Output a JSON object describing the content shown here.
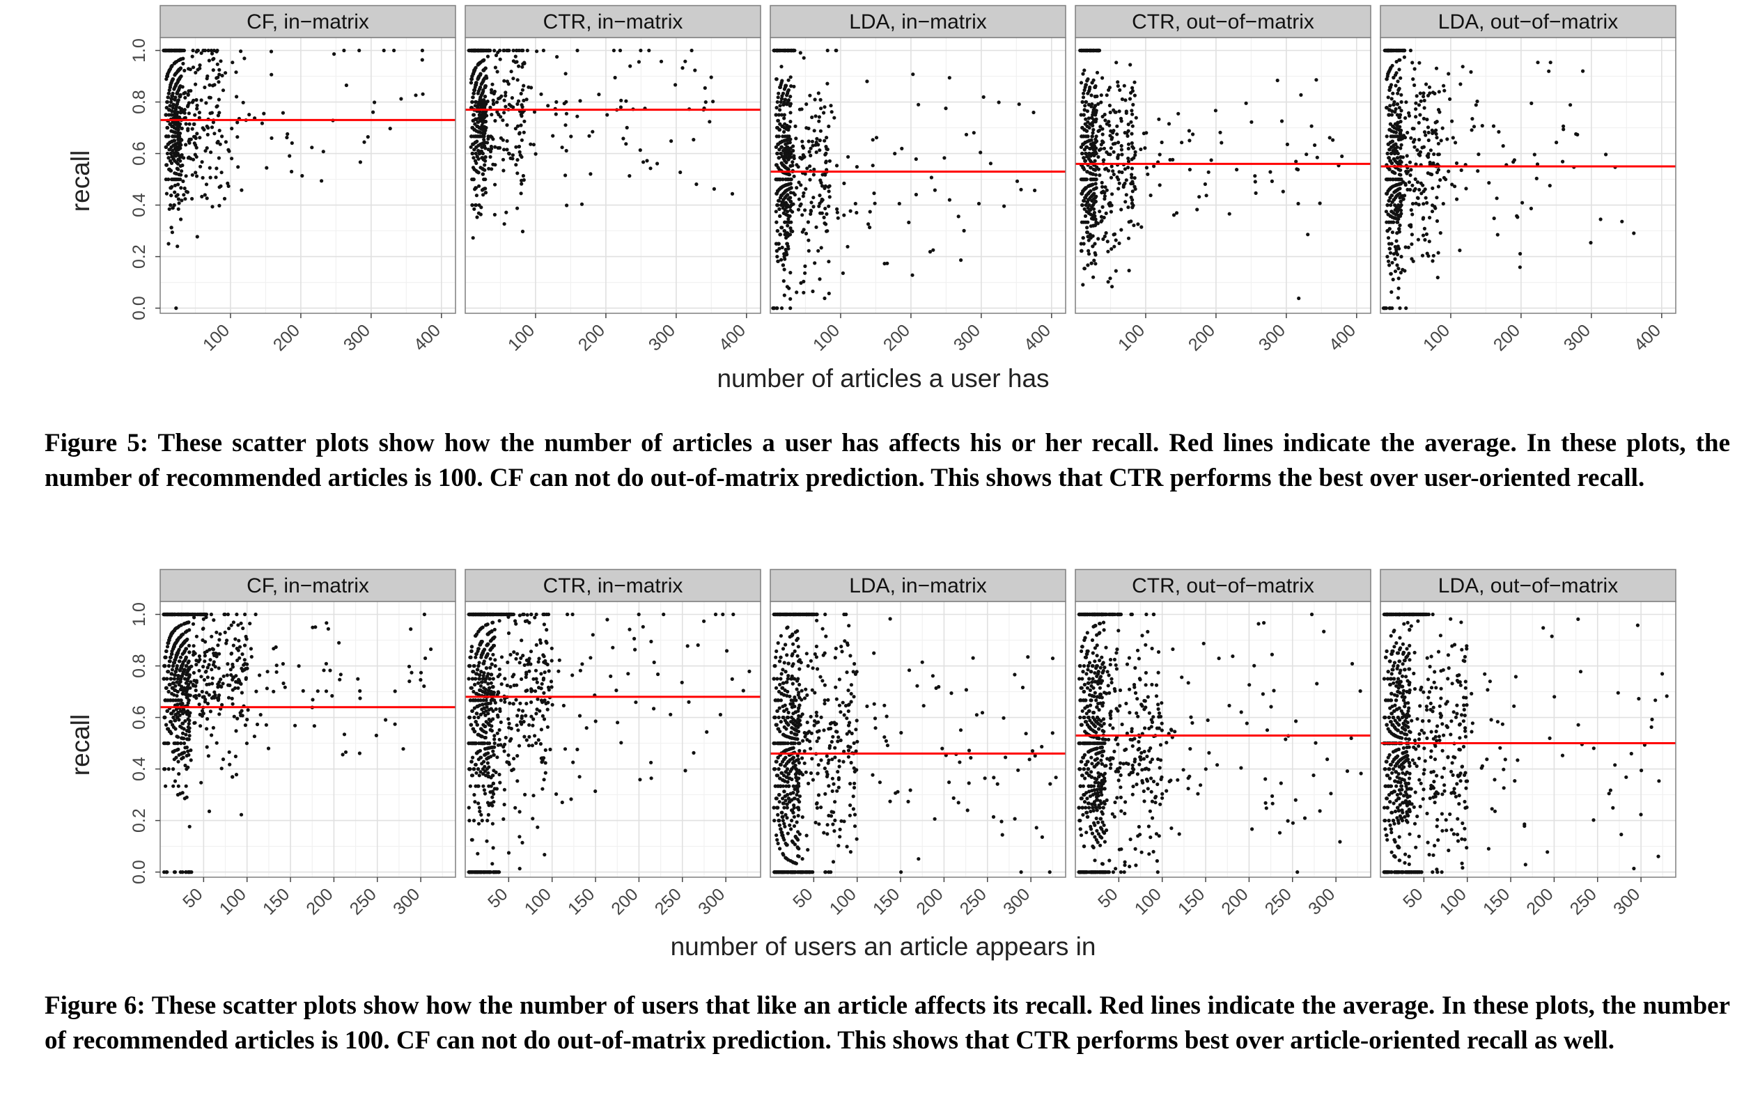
{
  "figures": [
    {
      "id": "fig5",
      "caption": "Figure 5: These scatter plots show how the number of articles a user has affects his or her recall. Red lines indicate the average. In these plots, the number of recommended articles is 100. CF can not do out-of-matrix prediction. This shows that CTR performs the best over user-oriented recall.",
      "xlabel": "number of articles a user has",
      "ylabel": "recall"
    },
    {
      "id": "fig6",
      "caption": "Figure 6: These scatter plots show how the number of users that like an article affects its recall. Red lines indicate the average. In these plots, the number of recommended articles is 100. CF can not do out-of-matrix prediction. This shows that CTR performs best over article-oriented recall as well.",
      "xlabel": "number of users an article appears in",
      "ylabel": "recall"
    }
  ],
  "colors": {
    "points": "#111111",
    "average_line": "#ff0000",
    "panel_bg": "#ffffff",
    "panel_border": "#7f7f7f",
    "grid_major": "#e0e0e0",
    "grid_minor": "#f1f1f1",
    "strip_bg": "#cccccc",
    "axis_text": "#444444"
  },
  "chart_data": [
    {
      "type": "scatter",
      "figure": "fig5",
      "xlabel": "number of articles a user has",
      "ylabel": "recall",
      "xlim": [
        0,
        420
      ],
      "ylim": [
        -0.02,
        1.05
      ],
      "xticks": [
        100,
        200,
        300,
        400
      ],
      "yticks": [
        0.0,
        0.2,
        0.4,
        0.6,
        0.8,
        1.0
      ],
      "ytick_labels": [
        "0.0",
        "0.2",
        "0.4",
        "0.6",
        "0.8",
        "1.0"
      ],
      "grid": true,
      "panels": [
        {
          "title": "CF, in−matrix",
          "mean": 0.73
        },
        {
          "title": "CTR, in−matrix",
          "mean": 0.77
        },
        {
          "title": "LDA, in−matrix",
          "mean": 0.53
        },
        {
          "title": "CTR, out−of−matrix",
          "mean": 0.56
        },
        {
          "title": "LDA, out−of−matrix",
          "mean": 0.55
        }
      ]
    },
    {
      "type": "scatter",
      "figure": "fig6",
      "xlabel": "number of users an article appears in",
      "ylabel": "recall",
      "xlim": [
        0,
        340
      ],
      "ylim": [
        -0.02,
        1.05
      ],
      "xticks": [
        50,
        100,
        150,
        200,
        250,
        300
      ],
      "yticks": [
        0.0,
        0.2,
        0.4,
        0.6,
        0.8,
        1.0
      ],
      "ytick_labels": [
        "0.0",
        "0.2",
        "0.4",
        "0.6",
        "0.8",
        "1.0"
      ],
      "grid": true,
      "panels": [
        {
          "title": "CF, in−matrix",
          "mean": 0.64
        },
        {
          "title": "CTR, in−matrix",
          "mean": 0.68
        },
        {
          "title": "LDA, in−matrix",
          "mean": 0.46
        },
        {
          "title": "CTR, out−of−matrix",
          "mean": 0.53
        },
        {
          "title": "LDA, out−of−matrix",
          "mean": 0.5
        }
      ]
    }
  ]
}
